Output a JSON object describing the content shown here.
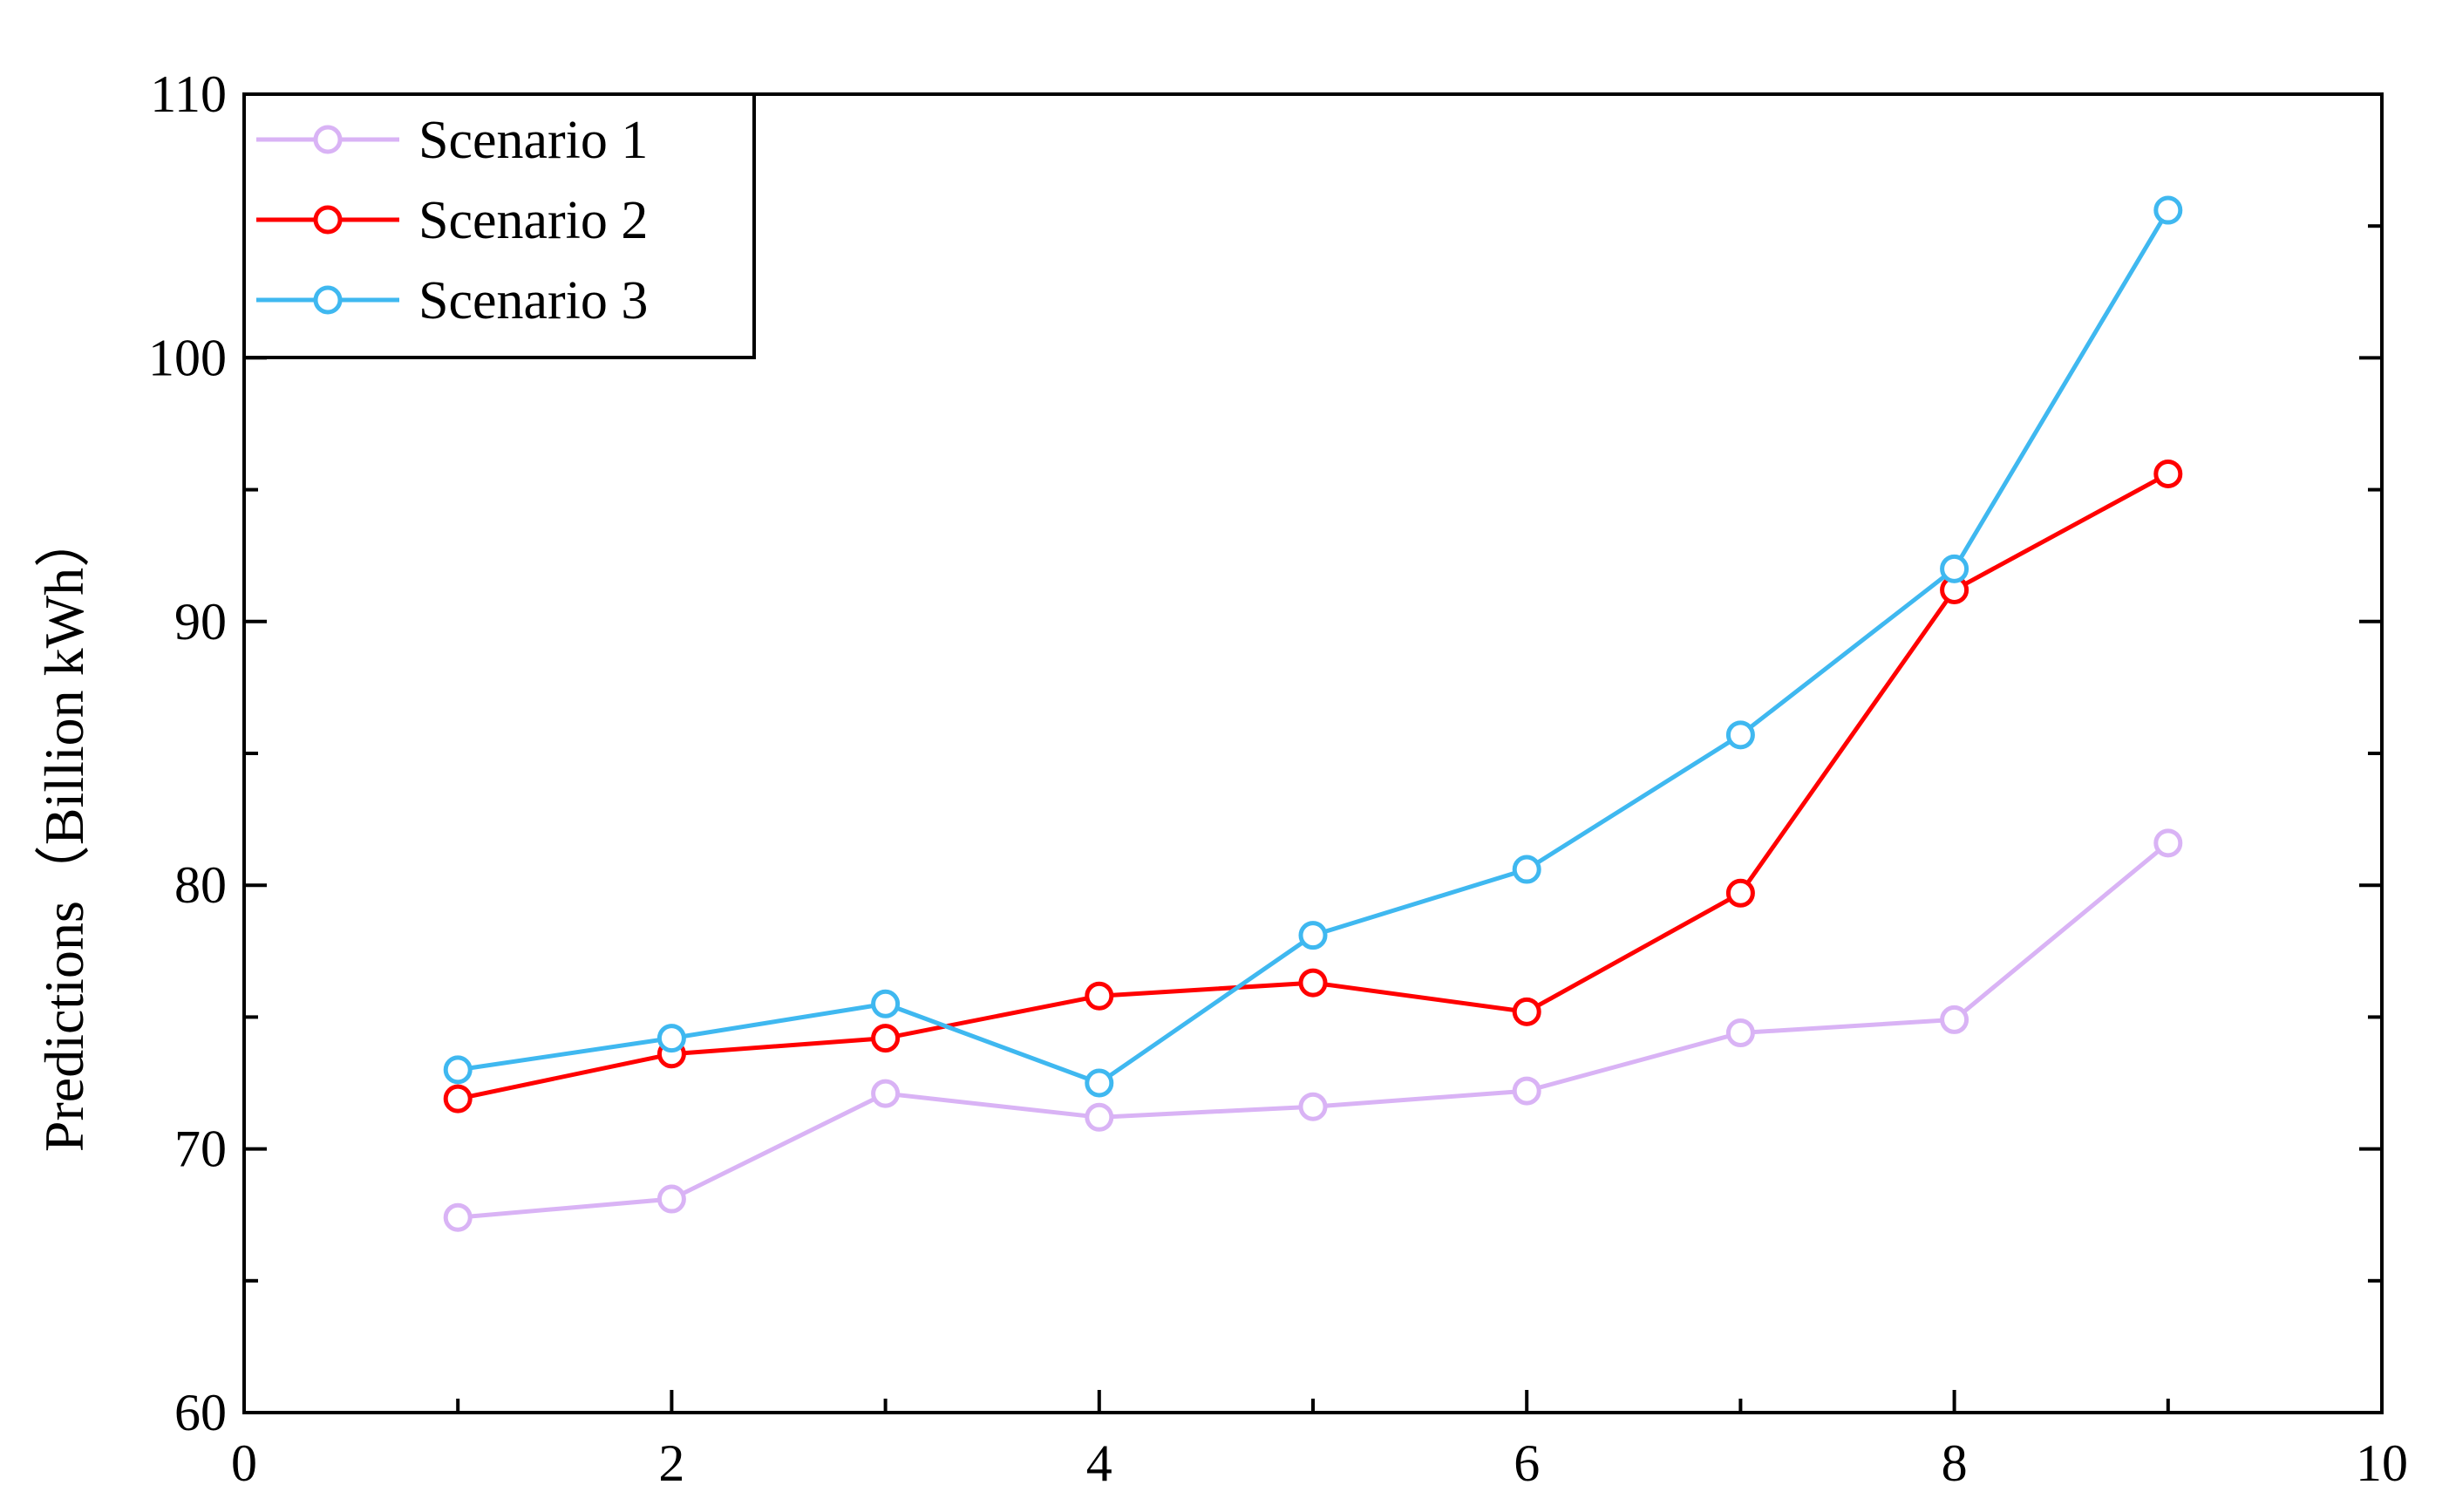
{
  "chart_data": {
    "type": "line",
    "ylabel": "Predictions（Billion kWh）",
    "xlim": [
      0,
      10
    ],
    "ylim": [
      60,
      110
    ],
    "x_ticks": [
      0,
      2,
      4,
      6,
      8,
      10
    ],
    "y_ticks": [
      60,
      70,
      80,
      90,
      100,
      110
    ],
    "legend_position": "top-left",
    "grid": false,
    "x": [
      1,
      2,
      3,
      4,
      5,
      6,
      7,
      8,
      9
    ],
    "series": [
      {
        "name": "Scenario 1",
        "color": "#d9b3f5",
        "values": [
          67.4,
          68.1,
          72.1,
          71.2,
          71.6,
          72.2,
          74.4,
          74.9,
          81.6
        ]
      },
      {
        "name": "Scenario 2",
        "color": "#ff0000",
        "values": [
          71.9,
          73.6,
          74.2,
          75.8,
          76.3,
          75.2,
          79.7,
          91.2,
          95.6
        ]
      },
      {
        "name": "Scenario 3",
        "color": "#3fb8f0",
        "values": [
          73.0,
          74.2,
          75.5,
          72.5,
          78.1,
          80.6,
          85.7,
          92.0,
          105.6
        ]
      }
    ]
  }
}
